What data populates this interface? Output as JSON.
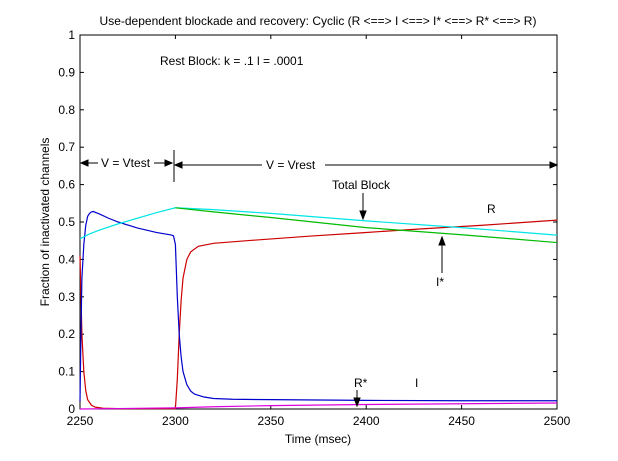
{
  "chart_data": {
    "type": "line",
    "title": "Use-dependent blockade and recovery:  Cyclic (R <==> I <==> I* <==> R* <==> R)",
    "xlabel": "Time (msec)",
    "ylabel": "Fraction of inactivated channels",
    "xlim": [
      2250,
      2500
    ],
    "ylim": [
      0,
      1
    ],
    "x_ticks": [
      "2250",
      "2300",
      "2350",
      "2400",
      "2450",
      "2500"
    ],
    "y_ticks": [
      "0",
      "0.1",
      "0.2",
      "0.3",
      "0.4",
      "0.5",
      "0.6",
      "0.7",
      "0.8",
      "0.9",
      "1"
    ],
    "grid": false,
    "legend": "none",
    "series": [
      {
        "name": "R",
        "color": "#cc0000",
        "x": [
          2250,
          2251,
          2252,
          2253,
          2254,
          2256,
          2258,
          2262,
          2270,
          2280,
          2299,
          2300,
          2301,
          2302,
          2303,
          2304,
          2306,
          2308,
          2312,
          2320,
          2340,
          2370,
          2400,
          2430,
          2460,
          2500
        ],
        "y": [
          0.41,
          0.2,
          0.1,
          0.05,
          0.025,
          0.01,
          0.005,
          0.002,
          0.001,
          0.001,
          0.001,
          0.001,
          0.08,
          0.2,
          0.29,
          0.35,
          0.4,
          0.42,
          0.435,
          0.443,
          0.451,
          0.462,
          0.472,
          0.482,
          0.491,
          0.505
        ]
      },
      {
        "name": "I",
        "color": "#0000cc",
        "x": [
          2250,
          2250.5,
          2251,
          2252,
          2253,
          2254,
          2255,
          2256,
          2257,
          2260,
          2265,
          2270,
          2280,
          2290,
          2298,
          2299,
          2300,
          2301,
          2302,
          2303,
          2304,
          2306,
          2308,
          2310,
          2315,
          2320,
          2330,
          2350,
          2400,
          2450,
          2500
        ],
        "y": [
          0.02,
          0.2,
          0.35,
          0.44,
          0.49,
          0.515,
          0.523,
          0.527,
          0.528,
          0.522,
          0.51,
          0.5,
          0.484,
          0.472,
          0.465,
          0.463,
          0.44,
          0.3,
          0.2,
          0.14,
          0.1,
          0.065,
          0.048,
          0.04,
          0.032,
          0.028,
          0.026,
          0.025,
          0.023,
          0.022,
          0.022
        ]
      },
      {
        "name": "Total Block",
        "color": "#00e5e5",
        "x": [
          2250,
          2255,
          2260,
          2270,
          2280,
          2290,
          2300,
          2320,
          2350,
          2400,
          2450,
          2500
        ],
        "y": [
          0.455,
          0.468,
          0.478,
          0.495,
          0.51,
          0.525,
          0.538,
          0.533,
          0.523,
          0.503,
          0.485,
          0.465
        ]
      },
      {
        "name": "I*",
        "color": "#00bb00",
        "x": [
          2300,
          2320,
          2350,
          2400,
          2450,
          2500
        ],
        "y": [
          0.538,
          0.527,
          0.512,
          0.485,
          0.466,
          0.445
        ]
      },
      {
        "name": "R*",
        "color": "#dd00dd",
        "x": [
          2250,
          2300,
          2320,
          2350,
          2400,
          2450,
          2500
        ],
        "y": [
          0.0,
          0.003,
          0.006,
          0.009,
          0.012,
          0.014,
          0.016
        ]
      }
    ],
    "annotations": {
      "rest_block": "Rest Block:  k = .1  l = .0001",
      "v_test": "V = Vtest",
      "v_rest": "V = Vrest",
      "total_block": "Total Block",
      "r_label": "R",
      "istar_label": "I*",
      "rstar_label": "R*",
      "i_label": "I"
    }
  }
}
